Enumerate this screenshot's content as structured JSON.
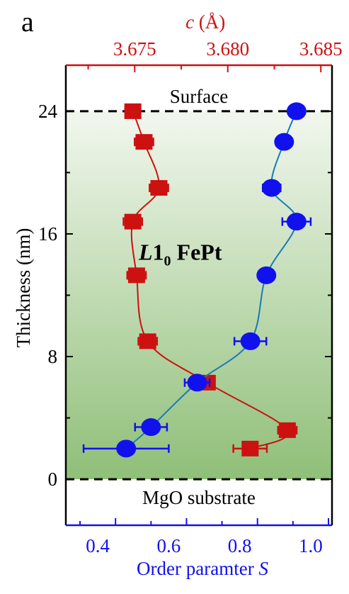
{
  "panel_label": "a",
  "colors": {
    "red": "#cc1111",
    "red_line": "#cc1111",
    "blue": "#1111ee",
    "blue_line": "#1a7ab8",
    "axis_black": "#000000",
    "bg_top": "#f2f7ee",
    "bg_bottom": "#8fbf78"
  },
  "chart_data": {
    "type": "scatter",
    "panel": "a",
    "ylabel": "Thickness (nm)",
    "ylim": [
      0,
      24
    ],
    "ylim_display": [
      -3,
      27
    ],
    "yticks": [
      "0",
      "8",
      "16",
      "24"
    ],
    "top_axis": {
      "label_italic": "c",
      "label_rest": " (Å)",
      "lim": [
        3.6713,
        3.6856
      ],
      "ticks": [
        "3.675",
        "3.680",
        "3.685"
      ],
      "tick_values": [
        3.675,
        3.68,
        3.685
      ],
      "color": "#cc1111"
    },
    "bottom_axis": {
      "label": "Order paramter ",
      "label_italic": "S",
      "lim": [
        0.31,
        1.06
      ],
      "ticks": [
        "0.4",
        "0.6",
        "0.8",
        "1.0"
      ],
      "tick_values": [
        0.4,
        0.6,
        0.8,
        1.0
      ],
      "color": "#1111ee"
    },
    "annotations": {
      "surface": "Surface",
      "substrate": "MgO substrate",
      "material_italic": "L",
      "material_num": "1",
      "material_sub": "0",
      "material_rest": " FePt"
    },
    "series": [
      {
        "axis": "top",
        "marker": "square",
        "color": "#cc1111",
        "points": [
          {
            "y": 24.0,
            "x": 3.6749,
            "xerr": 0.0004
          },
          {
            "y": 22.0,
            "x": 3.6755,
            "xerr": 0.0005
          },
          {
            "y": 19.0,
            "x": 3.6763,
            "xerr": 0.0005
          },
          {
            "y": 16.8,
            "x": 3.6749,
            "xerr": 0.0005
          },
          {
            "y": 13.3,
            "x": 3.6751,
            "xerr": 0.0005
          },
          {
            "y": 9.0,
            "x": 3.6757,
            "xerr": 0.0005
          },
          {
            "y": 6.3,
            "x": 3.6789,
            "xerr": 0.0004
          },
          {
            "y": 3.2,
            "x": 3.6832,
            "xerr": 0.0005
          },
          {
            "y": 2.0,
            "x": 3.6812,
            "xerr": 0.0009
          }
        ]
      },
      {
        "axis": "bottom",
        "marker": "circle",
        "color": "#1111ee",
        "points": [
          {
            "y": 24.0,
            "x": 0.96,
            "xerr": 0.0
          },
          {
            "y": 22.0,
            "x": 0.925,
            "xerr": 0.0
          },
          {
            "y": 19.0,
            "x": 0.89,
            "xerr": 0.025
          },
          {
            "y": 16.8,
            "x": 0.96,
            "xerr": 0.04
          },
          {
            "y": 13.3,
            "x": 0.875,
            "xerr": 0.0
          },
          {
            "y": 9.0,
            "x": 0.83,
            "xerr": 0.045
          },
          {
            "y": 6.3,
            "x": 0.68,
            "xerr": 0.035
          },
          {
            "y": 3.4,
            "x": 0.55,
            "xerr": 0.045
          },
          {
            "y": 2.0,
            "x": 0.48,
            "xerr": 0.12
          }
        ]
      }
    ]
  }
}
